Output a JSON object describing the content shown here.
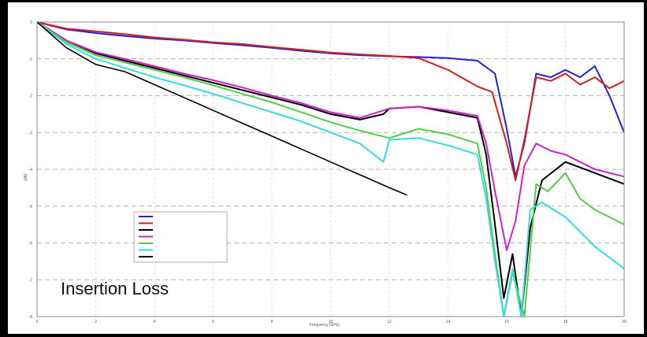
{
  "annotation": "Insertion Loss",
  "chart_data": {
    "type": "line",
    "title": "",
    "xlabel": "Frequency (GHz)",
    "ylabel": "(dB)",
    "grid": true,
    "legend_position": "bottom-left",
    "xlim": [
      0,
      20
    ],
    "ylim": [
      -8,
      0
    ],
    "series": [
      {
        "color": "#2323d6",
        "x": [
          0,
          1,
          2,
          3,
          4,
          5,
          6,
          7,
          8,
          9,
          10,
          11,
          12,
          13,
          14,
          15,
          15.6,
          16,
          16.3,
          16.6,
          17,
          17.5,
          18,
          18.5,
          19,
          19.5,
          20
        ],
        "y": [
          0,
          -0.2,
          -0.3,
          -0.38,
          -0.45,
          -0.5,
          -0.57,
          -0.63,
          -0.7,
          -0.78,
          -0.85,
          -0.9,
          -0.93,
          -0.95,
          -0.98,
          -1.05,
          -1.4,
          -2.9,
          -4.2,
          -3.3,
          -1.4,
          -1.5,
          -1.3,
          -1.5,
          -1.2,
          -2,
          -3
        ]
      },
      {
        "color": "#d21e1e",
        "x": [
          0,
          1,
          2,
          3,
          4,
          5,
          6,
          7,
          8,
          9,
          10,
          11,
          12,
          13,
          14,
          15,
          15.5,
          16,
          16.3,
          16.6,
          17,
          17.5,
          18,
          18.5,
          19,
          19.5,
          20
        ],
        "y": [
          0,
          -0.18,
          -0.25,
          -0.33,
          -0.42,
          -0.48,
          -0.55,
          -0.6,
          -0.68,
          -0.75,
          -0.83,
          -0.88,
          -0.92,
          -0.98,
          -1.3,
          -1.75,
          -1.9,
          -3.3,
          -4.3,
          -3.2,
          -1.5,
          -1.6,
          -1.4,
          -1.7,
          -1.5,
          -1.8,
          -1.6
        ]
      },
      {
        "color": "#000000",
        "x": [
          0,
          1,
          2,
          3,
          4,
          5,
          6,
          7,
          8,
          9,
          10,
          11,
          11.8,
          12,
          13,
          14,
          15,
          15.3,
          15.6,
          15.9,
          16.2,
          16.5,
          16.8,
          17.2,
          18,
          19,
          20
        ],
        "y": [
          0,
          -0.5,
          -0.85,
          -1.05,
          -1.25,
          -1.45,
          -1.65,
          -1.85,
          -2.05,
          -2.25,
          -2.5,
          -2.65,
          -2.5,
          -2.35,
          -2.3,
          -2.45,
          -2.6,
          -3.6,
          -5.5,
          -7.5,
          -6.3,
          -8,
          -5.6,
          -4.3,
          -3.8,
          -4.1,
          -4.4
        ]
      },
      {
        "color": "#cc22cc",
        "x": [
          0,
          1,
          2,
          3,
          4,
          5,
          6,
          7,
          8,
          9,
          10,
          11,
          12,
          13,
          14,
          15,
          15.3,
          15.6,
          16,
          16.3,
          16.6,
          17,
          17.5,
          18,
          18.5,
          19,
          20
        ],
        "y": [
          0,
          -0.5,
          -0.82,
          -1.0,
          -1.2,
          -1.4,
          -1.58,
          -1.78,
          -2,
          -2.2,
          -2.45,
          -2.6,
          -2.35,
          -2.3,
          -2.4,
          -2.55,
          -3.3,
          -4.6,
          -6.2,
          -5.4,
          -3.9,
          -3.3,
          -3.5,
          -3.6,
          -3.8,
          -4,
          -4.2
        ]
      },
      {
        "color": "#55cc44",
        "x": [
          0,
          1,
          2,
          3,
          4,
          5,
          6,
          7,
          8,
          9,
          10,
          11,
          12,
          13,
          14,
          15,
          15.3,
          15.6,
          15.9,
          16.2,
          16.6,
          17,
          17.4,
          18,
          18.5,
          19,
          20
        ],
        "y": [
          0,
          -0.55,
          -0.9,
          -1.1,
          -1.3,
          -1.5,
          -1.72,
          -1.95,
          -2.18,
          -2.45,
          -2.72,
          -2.95,
          -3.15,
          -2.9,
          -3.05,
          -3.3,
          -4.5,
          -6.3,
          -8,
          -6.8,
          -8,
          -4.4,
          -4.6,
          -4.1,
          -4.8,
          -5.1,
          -5.5
        ]
      },
      {
        "color": "#33dddd",
        "x": [
          0,
          1,
          2,
          3,
          4,
          5,
          6,
          7,
          8,
          9,
          10,
          11,
          11.8,
          12,
          13,
          14,
          15,
          15.3,
          15.6,
          15.9,
          16.2,
          16.5,
          16.8,
          17.2,
          18,
          19,
          20
        ],
        "y": [
          0,
          -0.6,
          -1.0,
          -1.25,
          -1.5,
          -1.72,
          -1.95,
          -2.2,
          -2.45,
          -2.7,
          -3.0,
          -3.3,
          -3.8,
          -3.2,
          -3.15,
          -3.35,
          -3.6,
          -4.8,
          -6.5,
          -8,
          -6.7,
          -8,
          -5.1,
          -4.9,
          -5.3,
          -6.1,
          -6.7
        ]
      },
      {
        "color": "#000000",
        "x": [
          0,
          1,
          2,
          3,
          4,
          5,
          6,
          7,
          8,
          9,
          10,
          11,
          12,
          12.6
        ],
        "y": [
          0,
          -0.7,
          -1.15,
          -1.35,
          -1.7,
          -2.05,
          -2.4,
          -2.75,
          -3.1,
          -3.45,
          -3.8,
          -4.15,
          -4.5,
          -4.7
        ],
        "smooth": true
      }
    ]
  }
}
